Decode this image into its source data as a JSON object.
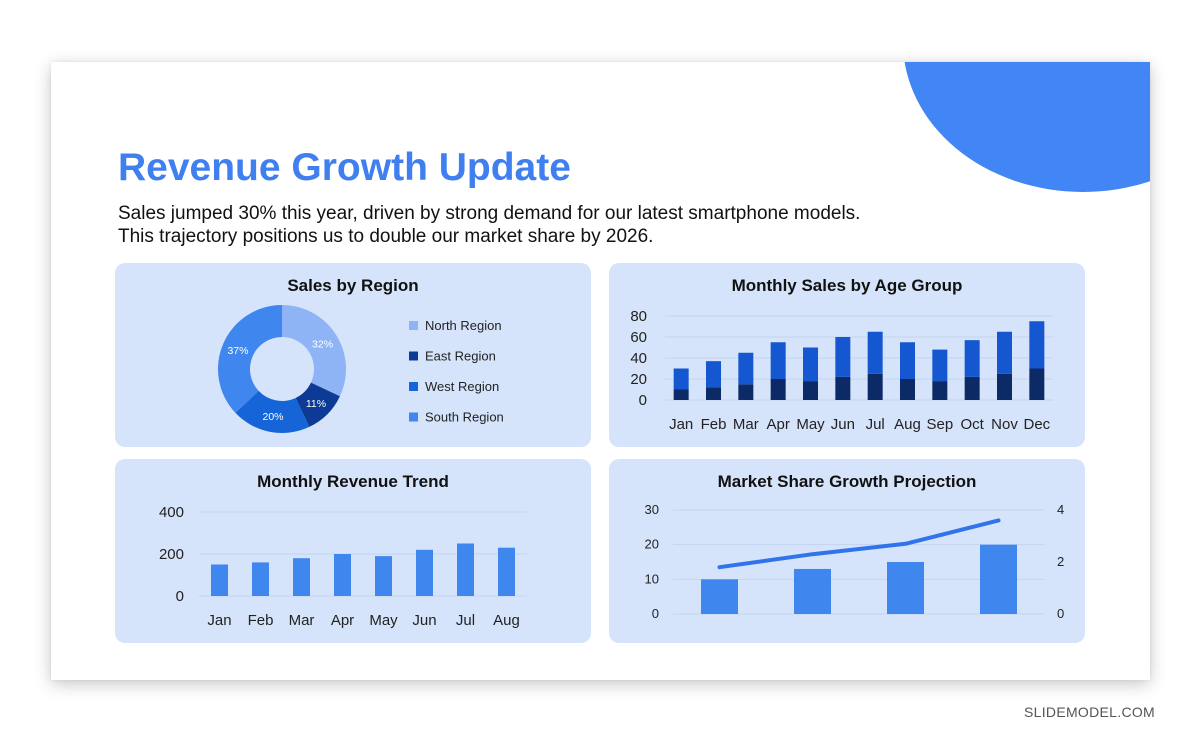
{
  "slide": {
    "title": "Revenue Growth Update",
    "subtitle_line1": "Sales jumped 30% this year, driven by strong demand for our latest smartphone models.",
    "subtitle_line2": "This trajectory positions us to double our market share by 2026."
  },
  "watermark": "SLIDEMODEL.COM",
  "colors": {
    "accent": "#3f7ff0",
    "panel_bg": "#d6e4fb",
    "light_blue": "#8fb4f5",
    "navy": "#0d3a94",
    "royal": "#1565d8",
    "medium": "#3f86ee",
    "dark_navy": "#0b2a66"
  },
  "chart_data": [
    {
      "type": "pie",
      "title": "Sales by Region",
      "slices": [
        {
          "label": "North Region",
          "value": 32,
          "display": "32%",
          "color": "#8fb4f5"
        },
        {
          "label": "East Region",
          "value": 11,
          "display": "11%",
          "color": "#0d3a94"
        },
        {
          "label": "West Region",
          "value": 20,
          "display": "20%",
          "color": "#1565d8"
        },
        {
          "label": "South Region",
          "value": 37,
          "display": "37%",
          "color": "#3f86ee"
        }
      ],
      "legend": "right"
    },
    {
      "type": "bar",
      "stacked": true,
      "title": "Monthly Sales by Age Group",
      "categories": [
        "Jan",
        "Feb",
        "Mar",
        "Apr",
        "May",
        "Jun",
        "Jul",
        "Aug",
        "Sep",
        "Oct",
        "Nov",
        "Dec"
      ],
      "series": [
        {
          "values": [
            10,
            12,
            15,
            20,
            18,
            22,
            25,
            20,
            18,
            22,
            25,
            30
          ],
          "color": "#0b2a66"
        },
        {
          "values": [
            20,
            25,
            30,
            35,
            32,
            38,
            40,
            35,
            30,
            35,
            40,
            45
          ],
          "color": "#1557d0"
        }
      ],
      "ylim": [
        0,
        80
      ],
      "yticks": [
        "0",
        "20",
        "40",
        "60",
        "80"
      ],
      "grid": true
    },
    {
      "type": "bar",
      "title": "Monthly Revenue Trend",
      "categories": [
        "Jan",
        "Feb",
        "Mar",
        "Apr",
        "May",
        "Jun",
        "Jul",
        "Aug"
      ],
      "values": [
        150,
        160,
        180,
        200,
        190,
        220,
        250,
        230
      ],
      "ylim": [
        0,
        400
      ],
      "yticks": [
        "0",
        "200",
        "400"
      ],
      "color": "#3f86ee",
      "grid": true
    },
    {
      "type": "bar",
      "combo": "bar+line",
      "title": "Market Share Growth Projection",
      "bars": [
        10,
        13,
        15,
        20
      ],
      "line": [
        1.8,
        2.3,
        2.7,
        3.6
      ],
      "ylim_left": [
        0,
        30
      ],
      "ylim_right": [
        0,
        4
      ],
      "yticks_left": [
        "0",
        "10",
        "20",
        "30"
      ],
      "yticks_right": [
        "0",
        "2",
        "4"
      ],
      "bar_color": "#3f86ee",
      "line_color": "#2f74ea",
      "grid": true
    }
  ]
}
